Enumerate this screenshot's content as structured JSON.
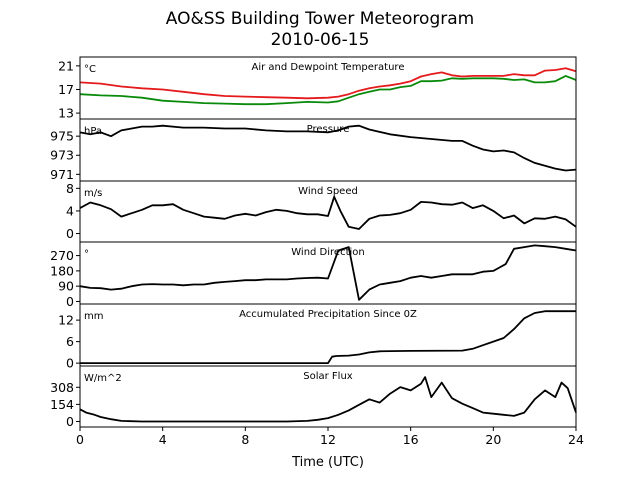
{
  "title": "AO&SS Building Tower Meteorogram",
  "subtitle": "2010-06-15",
  "xlabel": "Time (UTC)",
  "x_ticks": [
    0,
    4,
    8,
    12,
    16,
    20,
    24
  ],
  "xlim": [
    0,
    24
  ],
  "colors": {
    "temperature": "#e41a1c",
    "dewpoint": "#0a8a0a",
    "line": "#000000"
  },
  "chart_data": [
    {
      "type": "line",
      "title": "Air and Dewpoint Temperature",
      "unit": "°C",
      "ylim": [
        12,
        22.5
      ],
      "y_ticks": [
        13,
        17,
        21
      ],
      "series": [
        {
          "color_key": "temperature",
          "x": [
            0,
            1,
            2,
            3,
            4,
            5,
            6,
            7,
            8,
            9,
            10,
            11,
            12,
            12.5,
            13,
            13.5,
            14,
            14.5,
            15,
            15.5,
            16,
            16.5,
            17,
            17.5,
            18,
            18.5,
            19,
            19.5,
            20,
            20.5,
            21,
            21.5,
            22,
            22.5,
            23,
            23.5,
            24
          ],
          "values": [
            18.2,
            18.0,
            17.5,
            17.2,
            17.0,
            16.6,
            16.2,
            15.9,
            15.8,
            15.7,
            15.6,
            15.5,
            15.6,
            15.8,
            16.2,
            16.8,
            17.2,
            17.5,
            17.7,
            18.0,
            18.4,
            19.2,
            19.6,
            19.9,
            19.4,
            19.2,
            19.3,
            19.3,
            19.3,
            19.3,
            19.6,
            19.4,
            19.4,
            20.2,
            20.3,
            20.6,
            20.1
          ]
        },
        {
          "color_key": "dewpoint",
          "x": [
            0,
            1,
            2,
            3,
            4,
            5,
            6,
            7,
            8,
            9,
            10,
            11,
            12,
            12.5,
            13,
            13.5,
            14,
            14.5,
            15,
            15.5,
            16,
            16.5,
            17,
            17.5,
            18,
            18.5,
            19,
            19.5,
            20,
            20.5,
            21,
            21.5,
            22,
            22.5,
            23,
            23.5,
            24
          ],
          "values": [
            16.2,
            16.0,
            15.9,
            15.6,
            15.1,
            14.9,
            14.7,
            14.6,
            14.5,
            14.5,
            14.7,
            14.9,
            14.8,
            15.0,
            15.6,
            16.2,
            16.6,
            17.0,
            17.0,
            17.4,
            17.6,
            18.4,
            18.4,
            18.5,
            18.9,
            18.8,
            18.9,
            18.9,
            18.9,
            18.8,
            18.6,
            18.7,
            18.2,
            18.2,
            18.4,
            19.3,
            18.6
          ]
        }
      ]
    },
    {
      "type": "line",
      "title": "Pressure",
      "unit": "hPa",
      "ylim": [
        970.3,
        976.8
      ],
      "y_ticks": [
        971,
        973,
        975
      ],
      "series": [
        {
          "color_key": "line",
          "x": [
            0,
            0.5,
            1,
            1.5,
            2,
            2.5,
            3,
            3.5,
            4,
            5,
            6,
            7,
            8,
            9,
            10,
            11,
            12,
            12.5,
            13,
            13.5,
            14,
            15,
            16,
            17,
            18,
            18.5,
            19,
            19.5,
            20,
            20.5,
            21,
            21.5,
            22,
            22.5,
            23,
            23.5,
            24
          ],
          "values": [
            975.4,
            975.2,
            975.4,
            975.0,
            975.6,
            975.8,
            976.0,
            976.0,
            976.1,
            975.9,
            975.9,
            975.8,
            975.8,
            975.6,
            975.5,
            975.5,
            975.4,
            975.6,
            976.0,
            976.1,
            975.7,
            975.2,
            974.9,
            974.7,
            974.5,
            974.5,
            974.0,
            973.6,
            973.4,
            973.5,
            973.3,
            972.7,
            972.2,
            971.9,
            971.6,
            971.4,
            971.5
          ]
        }
      ]
    },
    {
      "type": "line",
      "title": "Wind Speed",
      "unit": "m/s",
      "ylim": [
        -1.5,
        9.3
      ],
      "y_ticks": [
        0,
        4,
        8
      ],
      "series": [
        {
          "color_key": "line",
          "x": [
            0,
            0.5,
            1,
            1.5,
            2,
            2.5,
            3,
            3.5,
            4,
            4.5,
            5,
            5.5,
            6,
            6.5,
            7,
            7.5,
            8,
            8.5,
            9,
            9.5,
            10,
            10.5,
            11,
            11.5,
            12,
            12.3,
            12.6,
            13,
            13.5,
            14,
            14.5,
            15,
            15.5,
            16,
            16.5,
            17,
            17.5,
            18,
            18.5,
            19,
            19.5,
            20,
            20.5,
            21,
            21.5,
            22,
            22.5,
            23,
            23.5,
            24
          ],
          "values": [
            4.5,
            5.5,
            5.0,
            4.3,
            3.0,
            3.6,
            4.2,
            5.0,
            5.0,
            5.2,
            4.2,
            3.6,
            3.0,
            2.8,
            2.6,
            3.2,
            3.5,
            3.2,
            3.8,
            4.2,
            4.0,
            3.6,
            3.4,
            3.4,
            3.1,
            6.5,
            4.0,
            1.2,
            0.8,
            2.6,
            3.2,
            3.3,
            3.6,
            4.2,
            5.6,
            5.5,
            5.2,
            5.1,
            5.5,
            4.5,
            5.0,
            4.0,
            2.7,
            3.2,
            1.8,
            2.7,
            2.6,
            3.0,
            2.5,
            1.2
          ]
        }
      ]
    },
    {
      "type": "line",
      "title": "Wind Direction",
      "unit": "°",
      "ylim": [
        -15,
        350
      ],
      "y_ticks": [
        0,
        90,
        180,
        270
      ],
      "series": [
        {
          "color_key": "line",
          "x": [
            0,
            0.5,
            1,
            1.5,
            2,
            2.5,
            3,
            3.5,
            4,
            4.5,
            5,
            5.5,
            6,
            6.5,
            7,
            7.5,
            8,
            8.5,
            9,
            9.5,
            10,
            10.5,
            11,
            11.5,
            12,
            12.5,
            13,
            13.5,
            14,
            14.5,
            15,
            15.5,
            16,
            16.5,
            17,
            17.5,
            18,
            18.5,
            19,
            19.5,
            20,
            20.3,
            20.6,
            21,
            21.5,
            22,
            22.5,
            23,
            23.5,
            24
          ],
          "values": [
            90,
            80,
            78,
            70,
            75,
            90,
            100,
            102,
            100,
            100,
            95,
            100,
            100,
            110,
            115,
            120,
            125,
            125,
            130,
            130,
            130,
            135,
            138,
            140,
            135,
            300,
            320,
            10,
            70,
            100,
            110,
            120,
            140,
            150,
            140,
            150,
            160,
            160,
            160,
            175,
            180,
            200,
            220,
            310,
            320,
            330,
            325,
            320,
            310,
            300
          ]
        }
      ]
    },
    {
      "type": "line",
      "title": "Accumulated Precipitation Since 0Z",
      "unit": "mm",
      "ylim": [
        -0.8,
        16.5
      ],
      "y_ticks": [
        0,
        6,
        12
      ],
      "series": [
        {
          "color_key": "line",
          "x": [
            0,
            10,
            12,
            12.2,
            12.4,
            13,
            13.5,
            14,
            14.5,
            16,
            18.5,
            19,
            19.5,
            20,
            20.5,
            21,
            21.5,
            22,
            22.5,
            23,
            23.5,
            24
          ],
          "values": [
            0,
            0,
            0,
            1.8,
            2.0,
            2.1,
            2.4,
            3.0,
            3.3,
            3.4,
            3.5,
            4.0,
            5.0,
            6.0,
            7.0,
            9.5,
            12.5,
            14.0,
            14.5,
            14.5,
            14.5,
            14.5
          ]
        }
      ]
    },
    {
      "type": "line",
      "title": "Solar Flux",
      "unit": "W/m^2",
      "ylim": [
        -50,
        500
      ],
      "y_ticks": [
        0,
        154,
        308
      ],
      "series": [
        {
          "color_key": "line",
          "x": [
            0,
            0.3,
            0.7,
            1,
            1.5,
            2,
            3,
            4,
            5,
            6,
            7,
            8,
            9,
            10,
            11,
            11.5,
            12,
            12.5,
            13,
            13.5,
            14,
            14.5,
            15,
            15.5,
            16,
            16.5,
            16.7,
            17,
            17.5,
            18,
            18.5,
            19,
            19.5,
            20,
            20.5,
            21,
            21.5,
            22,
            22.5,
            23,
            23.3,
            23.6,
            24
          ],
          "values": [
            110,
            80,
            60,
            40,
            20,
            5,
            0,
            0,
            0,
            0,
            0,
            0,
            0,
            0,
            5,
            15,
            30,
            60,
            100,
            150,
            200,
            170,
            250,
            310,
            280,
            340,
            400,
            220,
            350,
            210,
            160,
            120,
            80,
            70,
            60,
            50,
            80,
            200,
            280,
            220,
            350,
            300,
            80
          ]
        }
      ]
    }
  ]
}
